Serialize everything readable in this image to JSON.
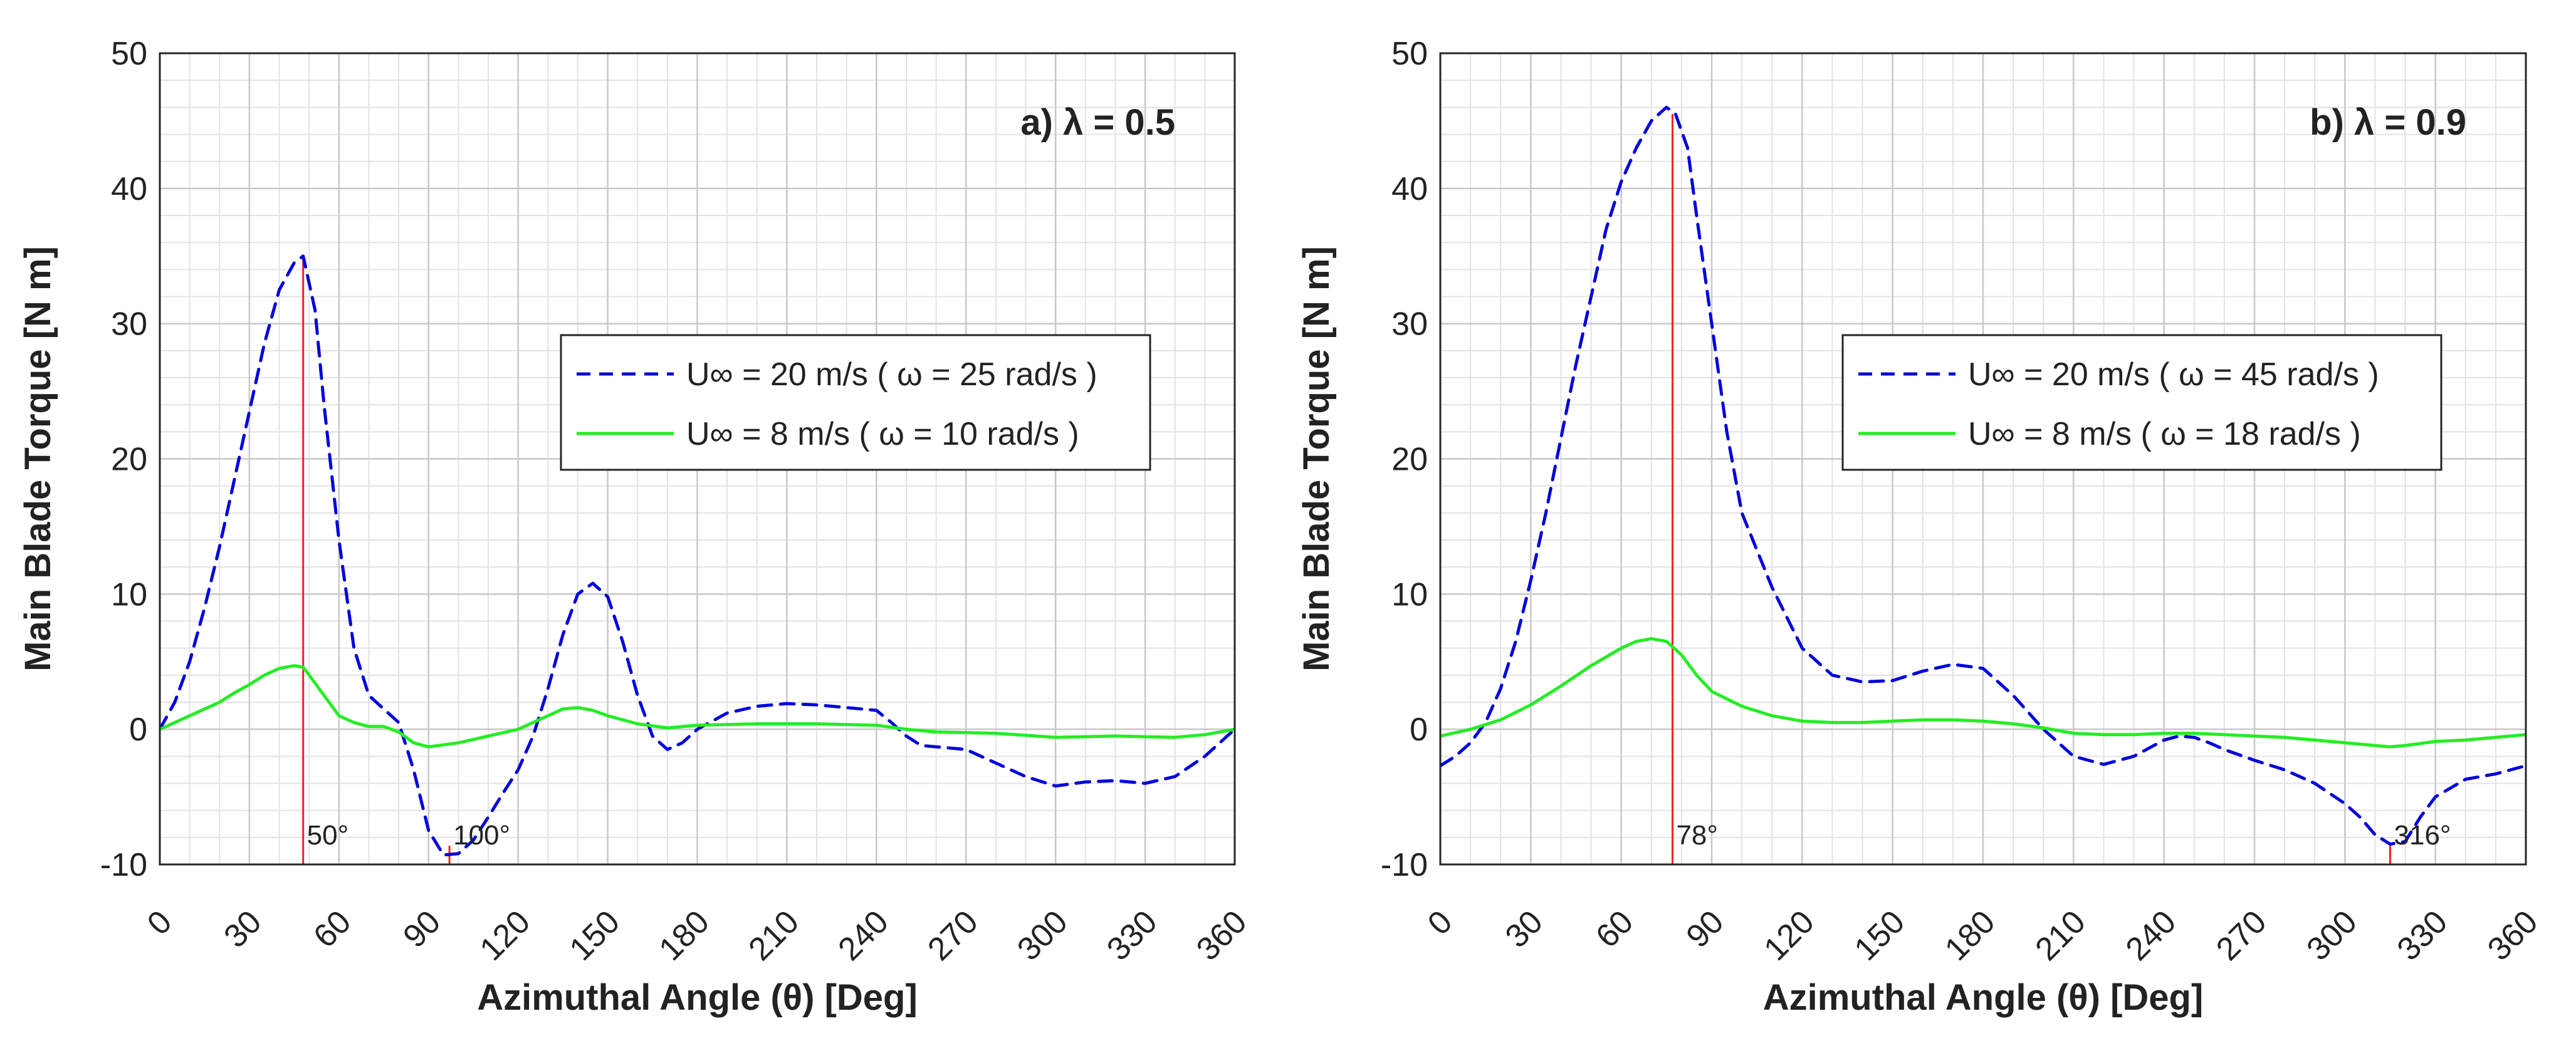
{
  "chart_data": [
    {
      "type": "line",
      "title": "a)  λ = 0.5",
      "title_prefix": "a)",
      "title_lambda": "λ = 0.5",
      "xlabel": "Azimuthal Angle (θ)  [Deg]",
      "ylabel": "Main Blade Torque [N m]",
      "xlim": [
        0,
        360
      ],
      "ylim": [
        -10,
        50
      ],
      "xticks": [
        0,
        30,
        60,
        90,
        120,
        150,
        180,
        210,
        240,
        270,
        300,
        330,
        360
      ],
      "yticks": [
        -10,
        0,
        10,
        20,
        30,
        40,
        50
      ],
      "grid": true,
      "minor_grid": true,
      "legend_position": "center-right",
      "series": [
        {
          "name": "U∞ = 20 m/s  ( ω = 25 rad/s )",
          "style": "dashed",
          "color": "#0000dd",
          "x": [
            0,
            5,
            10,
            15,
            20,
            25,
            30,
            35,
            40,
            45,
            48,
            52,
            55,
            60,
            65,
            70,
            75,
            80,
            85,
            90,
            95,
            100,
            105,
            110,
            115,
            120,
            125,
            130,
            135,
            140,
            145,
            150,
            155,
            160,
            165,
            170,
            175,
            180,
            190,
            200,
            210,
            220,
            230,
            240,
            245,
            250,
            255,
            260,
            270,
            280,
            290,
            300,
            310,
            320,
            330,
            340,
            350,
            360
          ],
          "values": [
            0,
            2,
            5,
            9,
            13.5,
            18.5,
            23.5,
            28.5,
            32.5,
            34.5,
            35,
            31,
            24,
            14,
            6,
            2.5,
            1.5,
            0.5,
            -3,
            -7.5,
            -9.3,
            -9.2,
            -8.2,
            -6.5,
            -4.7,
            -3,
            -0.5,
            3,
            7,
            10,
            10.8,
            9.8,
            6.5,
            2.5,
            -0.5,
            -1.5,
            -1,
            0,
            1.2,
            1.7,
            1.9,
            1.8,
            1.6,
            1.4,
            0.5,
            -0.5,
            -1.2,
            -1.3,
            -1.5,
            -2.5,
            -3.5,
            -4.2,
            -3.9,
            -3.8,
            -4,
            -3.5,
            -2,
            0
          ]
        },
        {
          "name": "U∞ =  8 m/s   ( ω = 10 rad/s )",
          "style": "solid",
          "color": "#22ee22",
          "x": [
            0,
            5,
            10,
            15,
            20,
            25,
            30,
            35,
            40,
            45,
            48,
            50,
            55,
            60,
            65,
            70,
            75,
            80,
            85,
            90,
            100,
            110,
            120,
            130,
            135,
            140,
            145,
            150,
            160,
            170,
            180,
            200,
            220,
            240,
            250,
            260,
            280,
            300,
            320,
            340,
            350,
            360
          ],
          "values": [
            0,
            0.5,
            1,
            1.5,
            2,
            2.7,
            3.3,
            4,
            4.5,
            4.7,
            4.6,
            4,
            2.5,
            1,
            0.5,
            0.2,
            0.2,
            -0.2,
            -1,
            -1.3,
            -1,
            -0.5,
            0,
            1,
            1.5,
            1.6,
            1.4,
            1,
            0.4,
            0.1,
            0.3,
            0.4,
            0.4,
            0.3,
            0,
            -0.2,
            -0.3,
            -0.6,
            -0.5,
            -0.6,
            -0.4,
            0
          ]
        }
      ],
      "annotations": [
        {
          "x": 48,
          "text": "50°",
          "type": "vline"
        },
        {
          "x": 97,
          "text": "100°",
          "type": "marker"
        }
      ]
    },
    {
      "type": "line",
      "title": "b)  λ = 0.9",
      "title_prefix": "b)",
      "title_lambda": "λ = 0.9",
      "xlabel": "Azimuthal Angle (θ)  [Deg]",
      "ylabel": "Main Blade Torque [N m]",
      "xlim": [
        0,
        360
      ],
      "ylim": [
        -10,
        50
      ],
      "xticks": [
        0,
        30,
        60,
        90,
        120,
        150,
        180,
        210,
        240,
        270,
        300,
        330,
        360
      ],
      "yticks": [
        -10,
        0,
        10,
        20,
        30,
        40,
        50
      ],
      "grid": true,
      "minor_grid": true,
      "legend_position": "center-right",
      "series": [
        {
          "name": "U∞ = 20 m/s  ( ω = 45 rad/s )",
          "style": "dashed",
          "color": "#0000dd",
          "x": [
            0,
            5,
            10,
            15,
            20,
            25,
            30,
            35,
            40,
            45,
            50,
            55,
            60,
            65,
            70,
            75,
            78,
            82,
            85,
            90,
            95,
            100,
            110,
            120,
            130,
            140,
            150,
            160,
            170,
            180,
            190,
            200,
            210,
            220,
            230,
            240,
            245,
            250,
            255,
            260,
            270,
            280,
            290,
            300,
            305,
            310,
            315,
            320,
            325,
            330,
            340,
            350,
            360
          ],
          "values": [
            -2.7,
            -2,
            -1,
            0.5,
            3,
            6.5,
            11,
            16,
            21.5,
            27,
            32,
            37,
            40.5,
            43,
            45,
            46,
            45.5,
            43,
            38,
            30,
            22,
            16,
            10.5,
            6,
            4,
            3.5,
            3.6,
            4.3,
            4.8,
            4.5,
            2.5,
            0,
            -2,
            -2.6,
            -2,
            -0.8,
            -0.5,
            -0.6,
            -1,
            -1.5,
            -2.3,
            -3,
            -4,
            -5.5,
            -6.5,
            -7.8,
            -8.5,
            -8.3,
            -6.5,
            -5,
            -3.7,
            -3.3,
            -2.7
          ]
        },
        {
          "name": "U∞ =  8 m/s   ( ω = 18 rad/s )",
          "style": "solid",
          "color": "#22ee22",
          "x": [
            0,
            10,
            20,
            30,
            40,
            50,
            60,
            65,
            70,
            75,
            80,
            85,
            90,
            100,
            110,
            120,
            130,
            140,
            150,
            160,
            170,
            180,
            190,
            200,
            210,
            220,
            230,
            240,
            250,
            260,
            270,
            280,
            290,
            300,
            310,
            315,
            320,
            330,
            340,
            350,
            360
          ],
          "values": [
            -0.5,
            0,
            0.7,
            1.8,
            3.2,
            4.7,
            6,
            6.5,
            6.7,
            6.5,
            5.5,
            4,
            2.8,
            1.7,
            1,
            0.6,
            0.5,
            0.5,
            0.6,
            0.7,
            0.7,
            0.6,
            0.4,
            0.1,
            -0.3,
            -0.4,
            -0.4,
            -0.3,
            -0.3,
            -0.4,
            -0.5,
            -0.6,
            -0.8,
            -1,
            -1.2,
            -1.3,
            -1.2,
            -0.9,
            -0.8,
            -0.6,
            -0.4
          ]
        }
      ],
      "annotations": [
        {
          "x": 77,
          "text": "78°",
          "type": "vline"
        },
        {
          "x": 315,
          "text": "316°",
          "type": "marker"
        }
      ]
    }
  ]
}
